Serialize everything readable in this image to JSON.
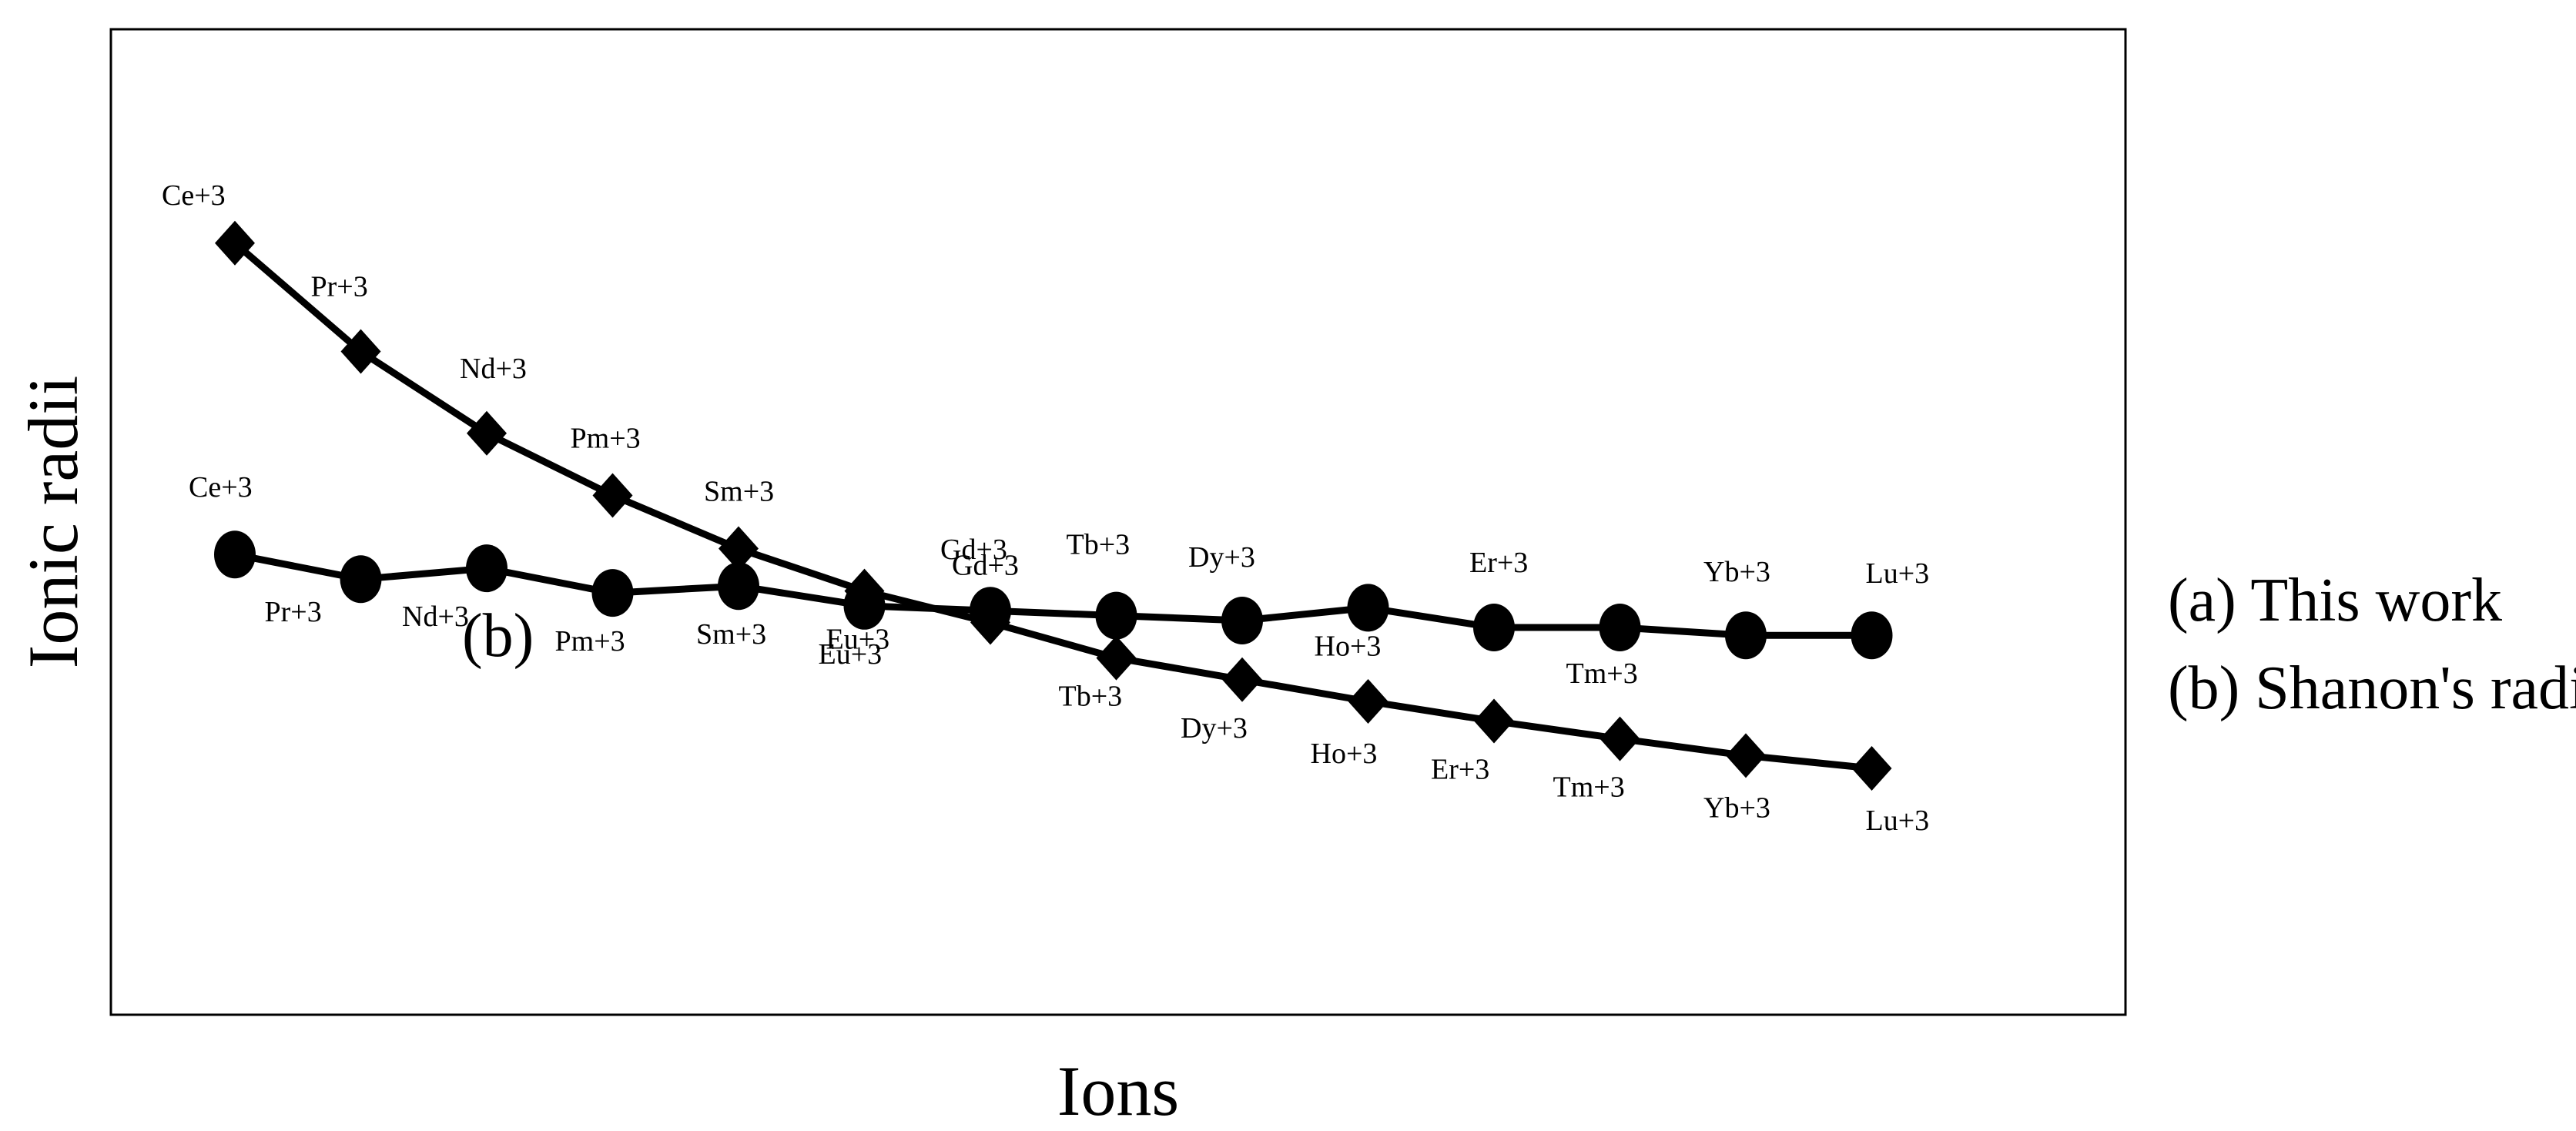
{
  "chart_data": {
    "type": "line",
    "xlabel": "Ions",
    "ylabel": "Ionic radii",
    "ylim": [
      0,
      100
    ],
    "grid": false,
    "legend_position": "right",
    "annotation": "(b)",
    "legend": [
      "(a) This work",
      "(b) Shanon's radii"
    ],
    "series": [
      {
        "name": "(a) This work",
        "marker": "circle",
        "points": [
          {
            "x": 1,
            "y": 46.7,
            "label": "Ce+3"
          },
          {
            "x": 2,
            "y": 44.2,
            "label": "Pr+3"
          },
          {
            "x": 3,
            "y": 45.3,
            "label": "Nd+3"
          },
          {
            "x": 4,
            "y": 42.8,
            "label": "Pm+3"
          },
          {
            "x": 5,
            "y": 43.5,
            "label": "Sm+3"
          },
          {
            "x": 6,
            "y": 41.5,
            "label": "Eu+3"
          },
          {
            "x": 7,
            "y": 41.0,
            "label": "Gd+3"
          },
          {
            "x": 8,
            "y": 40.5,
            "label": "Tb+3"
          },
          {
            "x": 9,
            "y": 40.0,
            "label": "Dy+3"
          },
          {
            "x": 10,
            "y": 41.3,
            "label": "Ho+3"
          },
          {
            "x": 11,
            "y": 39.3,
            "label": "Er+3"
          },
          {
            "x": 12,
            "y": 39.3,
            "label": "Tm+3"
          },
          {
            "x": 13,
            "y": 38.5,
            "label": "Yb+3"
          },
          {
            "x": 14,
            "y": 38.5,
            "label": "Lu+3"
          }
        ]
      },
      {
        "name": "(b) Shanon's radii",
        "marker": "diamond",
        "points": [
          {
            "x": 1,
            "y": 78.3,
            "label": "Ce+3"
          },
          {
            "x": 2,
            "y": 67.3,
            "label": "Pr+3"
          },
          {
            "x": 3,
            "y": 59.0,
            "label": "Nd+3"
          },
          {
            "x": 4,
            "y": 52.7,
            "label": "Pm+3"
          },
          {
            "x": 5,
            "y": 47.3,
            "label": "Sm+3"
          },
          {
            "x": 6,
            "y": 43.0,
            "label": "Eu+3"
          },
          {
            "x": 7,
            "y": 39.8,
            "label": "Gd+3"
          },
          {
            "x": 8,
            "y": 36.2,
            "label": "Tb+3"
          },
          {
            "x": 9,
            "y": 34.0,
            "label": "Dy+3"
          },
          {
            "x": 10,
            "y": 31.8,
            "label": "Ho+3"
          },
          {
            "x": 11,
            "y": 29.8,
            "label": "Er+3"
          },
          {
            "x": 12,
            "y": 28.0,
            "label": "Tm+3"
          },
          {
            "x": 13,
            "y": 26.3,
            "label": "Yb+3"
          },
          {
            "x": 14,
            "y": 25.0,
            "label": "Lu+3"
          }
        ]
      }
    ]
  }
}
